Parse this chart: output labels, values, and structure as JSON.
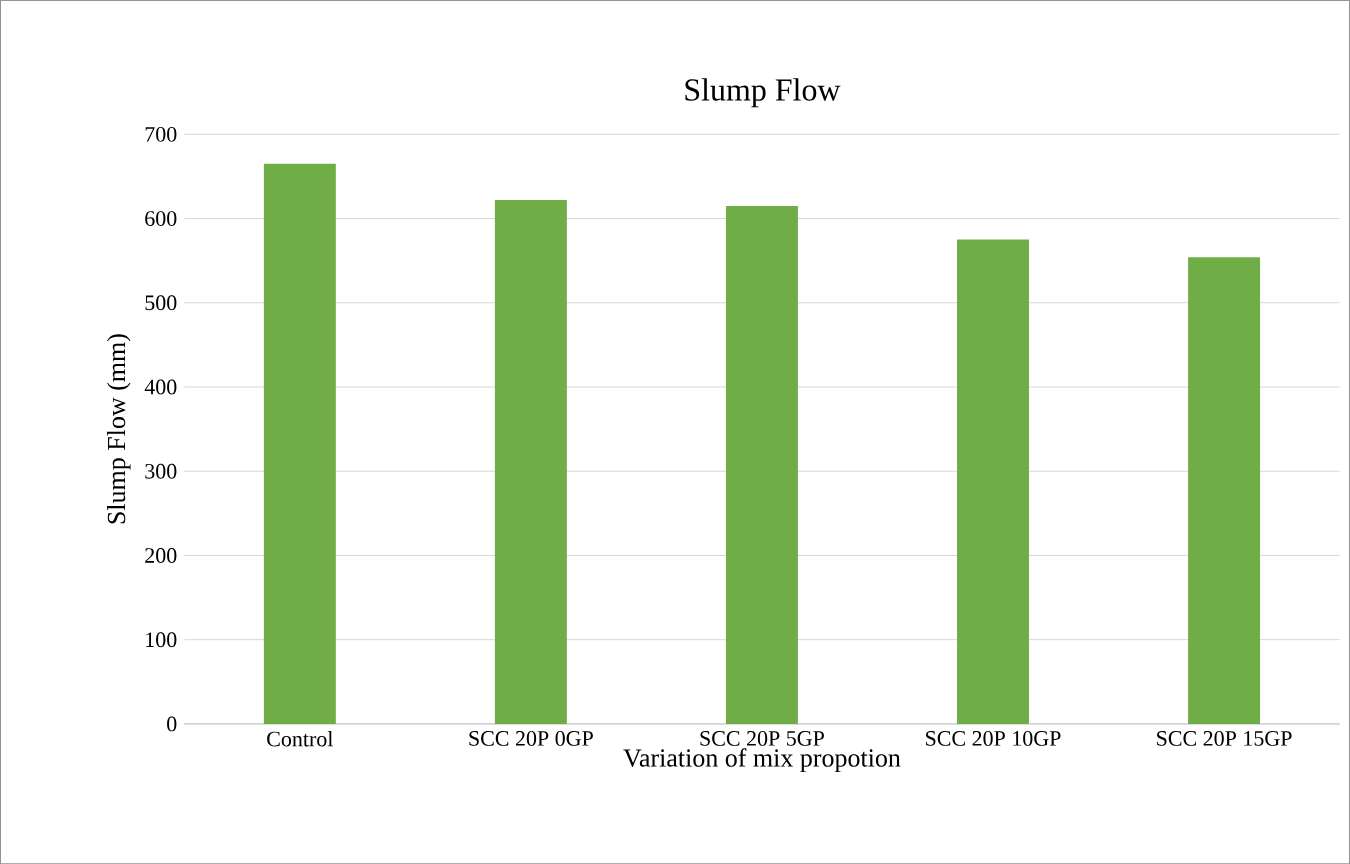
{
  "chart_data": {
    "type": "bar",
    "title": "Slump Flow",
    "xlabel": "Variation of mix propotion",
    "ylabel": "Slump Flow (mm)",
    "categories": [
      "Control",
      "SCC 20P 0GP",
      "SCC 20P 5GP",
      "SCC 20P 10GP",
      "SCC 20P 15GP"
    ],
    "values": [
      665,
      622,
      615,
      575,
      554
    ],
    "color": "#70ad47",
    "ylim": [
      0,
      700
    ],
    "yticks": [
      0,
      100,
      200,
      300,
      400,
      500,
      600,
      700
    ],
    "grid": "y"
  }
}
